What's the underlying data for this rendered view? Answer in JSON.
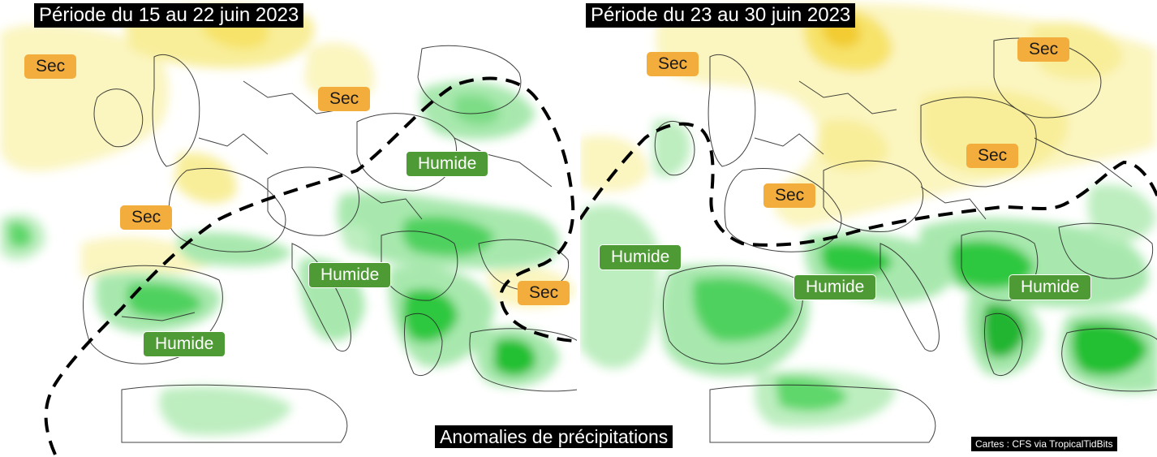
{
  "colors": {
    "dry_label": "#f2ad3c",
    "wet_label": "#4e9a35",
    "dry_area": "#f7ef9c",
    "wet_area": "#1fc43a",
    "boundary_line": "#000000"
  },
  "left_map": {
    "title": "Période du 15 au 22 juin 2023",
    "labels": {
      "sec_1": "Sec",
      "sec_2": "Sec",
      "sec_3": "Sec",
      "sec_4": "Sec",
      "humide_1": "Humide",
      "humide_2": "Humide",
      "humide_3": "Humide"
    }
  },
  "right_map": {
    "title": "Période du 23 au 30 juin 2023",
    "labels": {
      "sec_1": "Sec",
      "sec_2": "Sec",
      "sec_3": "Sec",
      "sec_4": "Sec",
      "humide_1": "Humide",
      "humide_2": "Humide",
      "humide_3": "Humide"
    }
  },
  "caption": "Anomalies de précipitations",
  "credit": "Cartes : CFS via TropicalTidBits"
}
